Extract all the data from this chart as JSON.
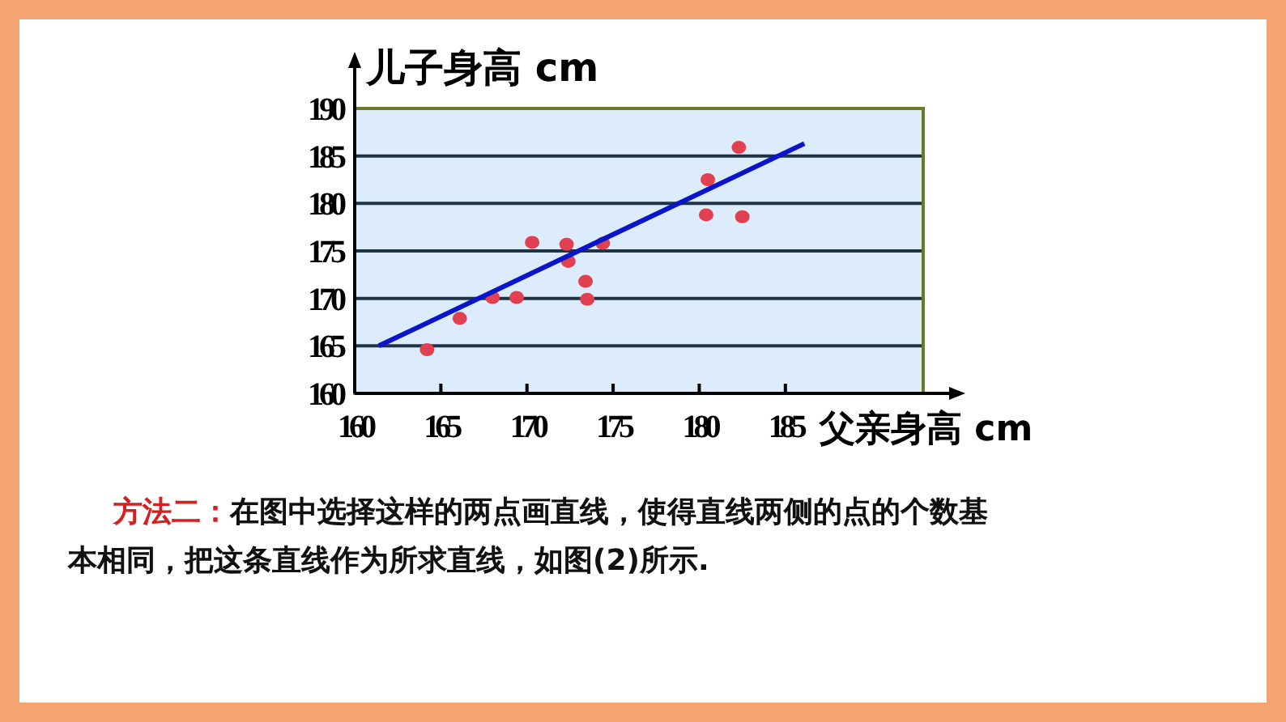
{
  "chart_data": {
    "type": "scatter",
    "xlabel": "父亲身高 cm",
    "ylabel": "儿子身高 cm",
    "x": [
      164.2,
      166.1,
      168.0,
      169.4,
      170.3,
      172.3,
      172.4,
      174.4,
      173.4,
      173.5,
      180.5,
      180.4,
      182.3,
      182.5
    ],
    "series": [
      {
        "color": "#e0404f",
        "values": [
          164.6,
          167.9,
          170.1,
          170.1,
          175.9,
          175.7,
          173.9,
          175.8,
          171.8,
          169.9,
          182.5,
          178.8,
          185.9,
          178.6
        ]
      },
      {
        "type": "line",
        "marker": "none",
        "color": "#0a14c8",
        "x": [
          161.4,
          186.1
        ],
        "values": [
          165.0,
          186.3
        ]
      }
    ],
    "xlim": [
      160,
      193
    ],
    "ylim": [
      160,
      190
    ],
    "xticks": [
      160,
      165,
      170,
      175,
      180,
      185
    ],
    "yticks": [
      160,
      165,
      170,
      175,
      180,
      185,
      190
    ],
    "grid": "y",
    "marker": "circle",
    "annotations": [
      "方法二：",
      "在图中选择这样的两点画直线，使得直线两侧的点的个数基本相同，把这条直线作为所求直线，如图(2)所示."
    ]
  }
}
